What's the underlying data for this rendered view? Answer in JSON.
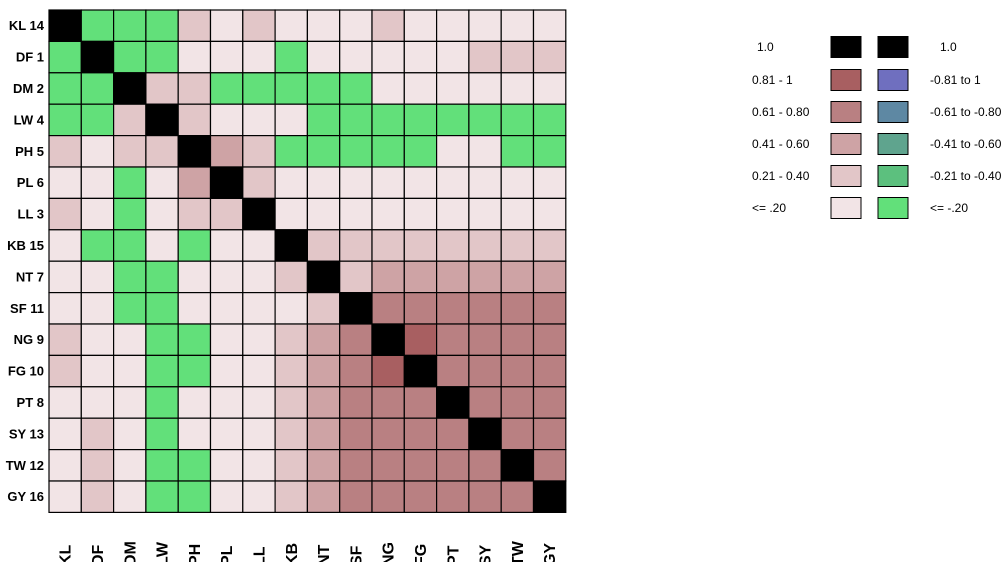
{
  "chart_data": {
    "type": "heatmap",
    "title": "",
    "labels": [
      {
        "row": "KL  14",
        "col": "KL"
      },
      {
        "row": "DF  1",
        "col": "DF"
      },
      {
        "row": "DM  2",
        "col": "DM"
      },
      {
        "row": "LW  4",
        "col": "LW"
      },
      {
        "row": "PH  5",
        "col": "PH"
      },
      {
        "row": "PL  6",
        "col": "PL"
      },
      {
        "row": "LL  3",
        "col": "LL"
      },
      {
        "row": "KB  15",
        "col": "KB"
      },
      {
        "row": "NT  7",
        "col": "NT"
      },
      {
        "row": "SF 11",
        "col": "SF"
      },
      {
        "row": "NG  9",
        "col": "NG"
      },
      {
        "row": "FG 10",
        "col": "FG"
      },
      {
        "row": "PT  8",
        "col": "PT"
      },
      {
        "row": "SY 13",
        "col": "SY"
      },
      {
        "row": "TW 12",
        "col": "TW"
      },
      {
        "row": "GY 16",
        "col": "GY"
      }
    ],
    "value_encoding": "correlation class: 6 = 1.0; 5 = 0.81-1; 4 = 0.61-0.80; 3 = 0.41-0.60; 2 = 0.21-0.40; 1 = <=.20; -5 = -0.81 to 1; -4 = -0.61 to -0.80; -3 = -0.41 to -0.60; -2 = -0.21 to -0.40; -1 = <=-.20",
    "matrix": [
      [
        6,
        -1,
        -1,
        -1,
        2,
        1,
        2,
        1,
        1,
        1,
        2,
        1,
        1,
        1,
        1,
        1
      ],
      [
        -1,
        6,
        -1,
        -1,
        1,
        1,
        1,
        -1,
        1,
        1,
        1,
        1,
        1,
        2,
        2,
        2
      ],
      [
        -1,
        -1,
        6,
        2,
        2,
        -1,
        -1,
        -1,
        -1,
        -1,
        1,
        1,
        1,
        1,
        1,
        1
      ],
      [
        -1,
        -1,
        2,
        6,
        2,
        1,
        1,
        1,
        -1,
        -1,
        -1,
        -1,
        -1,
        -1,
        -1,
        -1
      ],
      [
        2,
        1,
        2,
        2,
        6,
        3,
        2,
        -1,
        -1,
        -1,
        -1,
        -1,
        1,
        1,
        -1,
        -1
      ],
      [
        1,
        1,
        -1,
        1,
        3,
        6,
        2,
        1,
        1,
        1,
        1,
        1,
        1,
        1,
        1,
        1
      ],
      [
        2,
        1,
        -1,
        1,
        2,
        2,
        6,
        1,
        1,
        1,
        1,
        1,
        1,
        1,
        1,
        1
      ],
      [
        1,
        -1,
        -1,
        1,
        -1,
        1,
        1,
        6,
        2,
        2,
        2,
        2,
        2,
        2,
        2,
        2
      ],
      [
        1,
        1,
        -1,
        -1,
        1,
        1,
        1,
        2,
        6,
        2,
        3,
        3,
        3,
        3,
        3,
        3
      ],
      [
        1,
        1,
        -1,
        -1,
        1,
        1,
        1,
        1,
        2,
        6,
        4,
        4,
        4,
        4,
        4,
        4
      ],
      [
        2,
        1,
        1,
        -1,
        -1,
        1,
        1,
        2,
        3,
        4,
        6,
        5,
        4,
        4,
        4,
        4
      ],
      [
        2,
        1,
        1,
        -1,
        -1,
        1,
        1,
        2,
        3,
        4,
        5,
        6,
        4,
        4,
        4,
        4
      ],
      [
        1,
        1,
        1,
        -1,
        1,
        1,
        1,
        2,
        3,
        4,
        4,
        4,
        6,
        4,
        4,
        4
      ],
      [
        1,
        2,
        1,
        -1,
        1,
        1,
        1,
        2,
        3,
        4,
        4,
        4,
        4,
        6,
        4,
        4
      ],
      [
        1,
        2,
        1,
        -1,
        -1,
        1,
        1,
        2,
        3,
        4,
        4,
        4,
        4,
        4,
        6,
        4
      ],
      [
        1,
        2,
        1,
        -1,
        -1,
        1,
        1,
        2,
        3,
        4,
        4,
        4,
        4,
        4,
        4,
        6
      ]
    ],
    "colors": {
      "6": "#000000",
      "5": "#a85f61",
      "4": "#b98082",
      "3": "#cea3a5",
      "2": "#e2c6c8",
      "1": "#f2e4e6",
      "-5": "#6f6fbf",
      "-4": "#5e88a3",
      "-3": "#5fa48e",
      "-2": "#5cc07e",
      "-1": "#62e07a"
    },
    "legend": {
      "positive": [
        {
          "label": "1.0",
          "level": "6"
        },
        {
          "label": "0.81 - 1",
          "level": "5"
        },
        {
          "label": "0.61 - 0.80",
          "level": "4"
        },
        {
          "label": "0.41 - 0.60",
          "level": "3"
        },
        {
          "label": "0.21 - 0.40",
          "level": "2"
        },
        {
          "label": "<= .20",
          "level": "1"
        }
      ],
      "negative": [
        {
          "label": "1.0",
          "level": "6"
        },
        {
          "label": "-0.81 to 1",
          "level": "-5"
        },
        {
          "label": "-0.61 to -0.80",
          "level": "-4"
        },
        {
          "label": "-0.41 to -0.60",
          "level": "-3"
        },
        {
          "label": "-0.21 to -0.40",
          "level": "-2"
        },
        {
          "label": "<= -.20",
          "level": "-1"
        }
      ]
    }
  }
}
